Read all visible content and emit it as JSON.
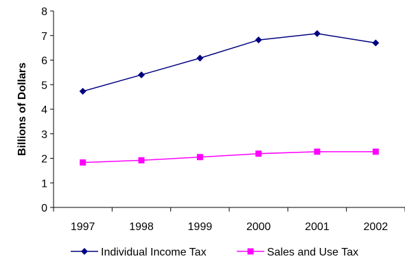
{
  "chart_data": {
    "type": "line",
    "title": "",
    "xlabel": "",
    "ylabel": "Billions of Dollars",
    "categories": [
      "1997",
      "1998",
      "1999",
      "2000",
      "2001",
      "2002"
    ],
    "ylim": [
      0,
      8
    ],
    "yticks": [
      "0",
      "1",
      "2",
      "3",
      "4",
      "5",
      "6",
      "7",
      "8"
    ],
    "grid": false,
    "legend_position": "bottom",
    "series": [
      {
        "name": "Individual Income Tax",
        "values": [
          4.73,
          5.4,
          6.08,
          6.82,
          7.08,
          6.7
        ],
        "color": "#000080",
        "marker": "diamond"
      },
      {
        "name": "Sales and Use Tax",
        "values": [
          1.83,
          1.92,
          2.05,
          2.19,
          2.27,
          2.27
        ],
        "color": "#ff00ff",
        "marker": "square"
      }
    ]
  }
}
